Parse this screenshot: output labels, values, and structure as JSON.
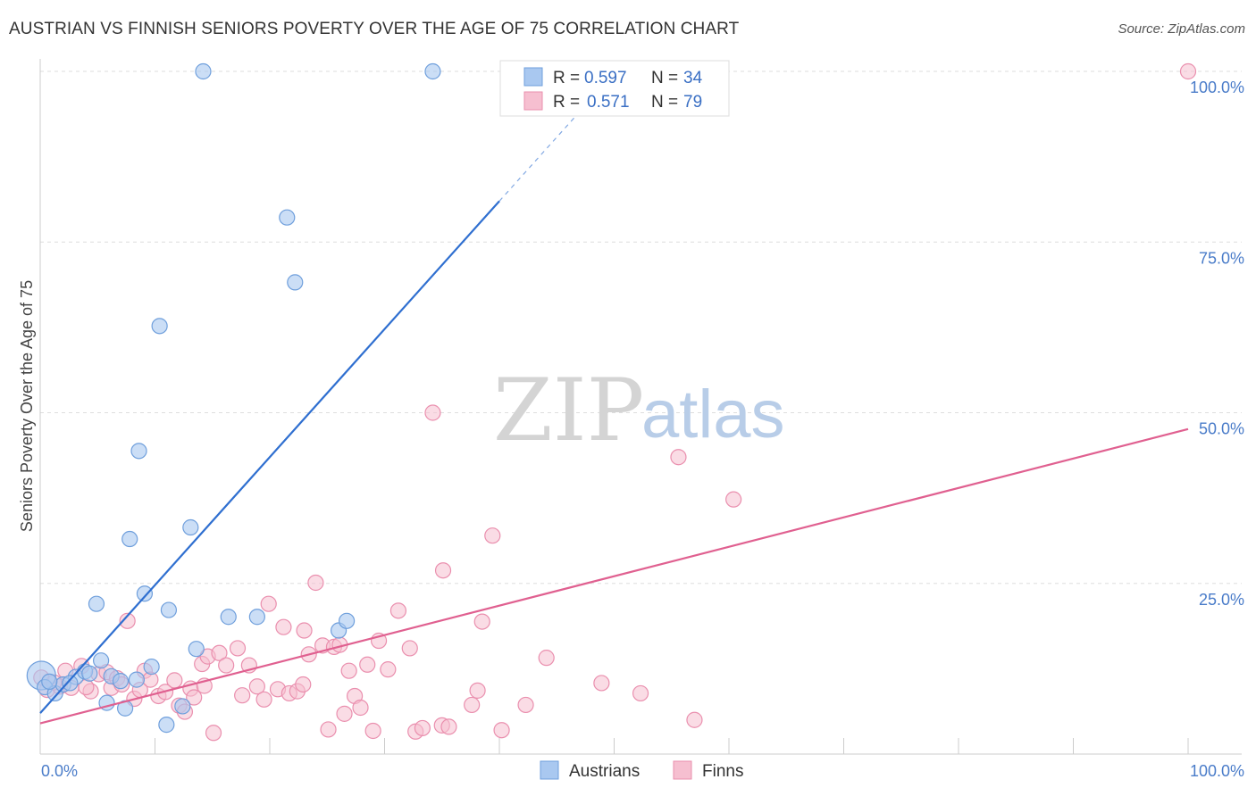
{
  "header": {
    "title": "AUSTRIAN VS FINNISH SENIORS POVERTY OVER THE AGE OF 75 CORRELATION CHART",
    "source": "Source: ZipAtlas.com"
  },
  "colors": {
    "austrians_fill": "#a9c8f0",
    "austrians_stroke": "#6f9fdc",
    "austrians_line": "#2f6fd0",
    "finns_fill": "#f6bfd0",
    "finns_stroke": "#ea8fae",
    "finns_line": "#e06090",
    "axis_text": "#4a7cc9",
    "grid": "#dddddd"
  },
  "legend": {
    "austrians": {
      "r_label": "R =",
      "r_value": "0.597",
      "n_label": "N =",
      "n_value": "34"
    },
    "finns": {
      "r_label": "R =",
      "r_value": "0.571",
      "n_label": "N =",
      "n_value": "79"
    }
  },
  "watermark": {
    "part1": "ZIP",
    "part2": "atlas"
  },
  "chart_data": {
    "type": "scatter",
    "title": "AUSTRIAN VS FINNISH SENIORS POVERTY OVER THE AGE OF 75 CORRELATION CHART",
    "xlabel": "",
    "ylabel": "Seniors Poverty Over the Age of 75",
    "xlim": [
      0,
      100
    ],
    "ylim": [
      0,
      100
    ],
    "x_tick_labels": [
      "0.0%",
      "100.0%"
    ],
    "y_tick_labels": [
      "25.0%",
      "50.0%",
      "75.0%",
      "100.0%"
    ],
    "y_ticks": [
      25,
      50,
      75,
      100
    ],
    "grid": true,
    "legend_position": "bottom-center",
    "series": [
      {
        "name": "Austrians",
        "regression": {
          "x0": 0,
          "y0": 6.0,
          "x1": 40,
          "y1": 81.0,
          "dashed_to_x": 47,
          "dashed_to_y": 94.1
        },
        "points": [
          [
            0.1,
            11.5
          ],
          [
            0.4,
            9.8
          ],
          [
            1.3,
            8.9
          ],
          [
            2.0,
            10.2
          ],
          [
            3.1,
            11.3
          ],
          [
            3.9,
            12.1
          ],
          [
            4.3,
            11.8
          ],
          [
            4.9,
            22.0
          ],
          [
            5.3,
            13.7
          ],
          [
            5.8,
            7.5
          ],
          [
            6.2,
            11.4
          ],
          [
            7.0,
            10.7
          ],
          [
            7.4,
            6.7
          ],
          [
            7.8,
            31.5
          ],
          [
            8.6,
            44.4
          ],
          [
            9.1,
            23.5
          ],
          [
            9.7,
            12.8
          ],
          [
            10.4,
            62.7
          ],
          [
            11.0,
            4.3
          ],
          [
            11.2,
            21.1
          ],
          [
            12.4,
            7.0
          ],
          [
            13.1,
            33.2
          ],
          [
            13.6,
            15.4
          ],
          [
            14.2,
            100
          ],
          [
            16.4,
            20.1
          ],
          [
            18.9,
            20.1
          ],
          [
            21.5,
            78.6
          ],
          [
            22.2,
            69.1
          ],
          [
            26.0,
            18.1
          ],
          [
            26.7,
            19.5
          ],
          [
            34.2,
            100
          ],
          [
            0.8,
            10.6
          ],
          [
            2.6,
            10.4
          ],
          [
            8.4,
            10.9
          ]
        ]
      },
      {
        "name": "Finns",
        "regression": {
          "x0": 0,
          "y0": 4.5,
          "x1": 100,
          "y1": 47.6
        },
        "points": [
          [
            0.1,
            11.2
          ],
          [
            0.6,
            9.4
          ],
          [
            1.7,
            9.9
          ],
          [
            2.2,
            12.2
          ],
          [
            2.7,
            9.7
          ],
          [
            3.6,
            12.9
          ],
          [
            4.4,
            9.2
          ],
          [
            5.1,
            11.7
          ],
          [
            5.8,
            12.0
          ],
          [
            6.2,
            9.7
          ],
          [
            6.7,
            11.1
          ],
          [
            7.1,
            10.2
          ],
          [
            7.6,
            19.5
          ],
          [
            8.2,
            8.1
          ],
          [
            8.7,
            9.4
          ],
          [
            9.1,
            12.2
          ],
          [
            9.6,
            10.9
          ],
          [
            10.3,
            8.5
          ],
          [
            10.9,
            9.1
          ],
          [
            11.7,
            10.8
          ],
          [
            12.1,
            7.1
          ],
          [
            12.6,
            6.2
          ],
          [
            13.1,
            9.6
          ],
          [
            13.4,
            8.3
          ],
          [
            14.1,
            13.2
          ],
          [
            14.6,
            14.3
          ],
          [
            15.1,
            3.1
          ],
          [
            15.6,
            14.8
          ],
          [
            16.2,
            13.0
          ],
          [
            17.2,
            15.5
          ],
          [
            17.6,
            8.6
          ],
          [
            18.2,
            13.0
          ],
          [
            18.9,
            9.9
          ],
          [
            19.5,
            8.0
          ],
          [
            19.9,
            22.0
          ],
          [
            20.7,
            9.5
          ],
          [
            21.2,
            18.6
          ],
          [
            21.7,
            8.9
          ],
          [
            22.4,
            9.2
          ],
          [
            23.0,
            18.1
          ],
          [
            23.4,
            14.6
          ],
          [
            24.0,
            25.1
          ],
          [
            24.6,
            15.9
          ],
          [
            25.1,
            3.6
          ],
          [
            25.6,
            15.7
          ],
          [
            26.1,
            16.0
          ],
          [
            26.5,
            5.9
          ],
          [
            26.9,
            12.2
          ],
          [
            27.4,
            8.5
          ],
          [
            27.9,
            6.8
          ],
          [
            28.5,
            13.1
          ],
          [
            29.0,
            3.4
          ],
          [
            29.5,
            16.6
          ],
          [
            30.3,
            12.4
          ],
          [
            31.2,
            21.0
          ],
          [
            32.2,
            15.5
          ],
          [
            32.7,
            3.3
          ],
          [
            33.3,
            3.8
          ],
          [
            34.2,
            50.0
          ],
          [
            35.0,
            4.2
          ],
          [
            35.1,
            26.9
          ],
          [
            35.6,
            4.0
          ],
          [
            37.6,
            7.2
          ],
          [
            38.1,
            9.3
          ],
          [
            38.5,
            19.4
          ],
          [
            39.4,
            32.0
          ],
          [
            40.2,
            3.5
          ],
          [
            42.3,
            7.2
          ],
          [
            44.1,
            14.1
          ],
          [
            48.9,
            10.4
          ],
          [
            52.3,
            8.9
          ],
          [
            55.6,
            43.5
          ],
          [
            57.0,
            5.0
          ],
          [
            60.4,
            37.3
          ],
          [
            100,
            100
          ],
          [
            1.2,
            10.5
          ],
          [
            4.0,
            9.8
          ],
          [
            14.3,
            10.0
          ],
          [
            22.9,
            10.2
          ]
        ]
      }
    ]
  },
  "bottom_legend": {
    "austrians_label": "Austrians",
    "finns_label": "Finns"
  }
}
